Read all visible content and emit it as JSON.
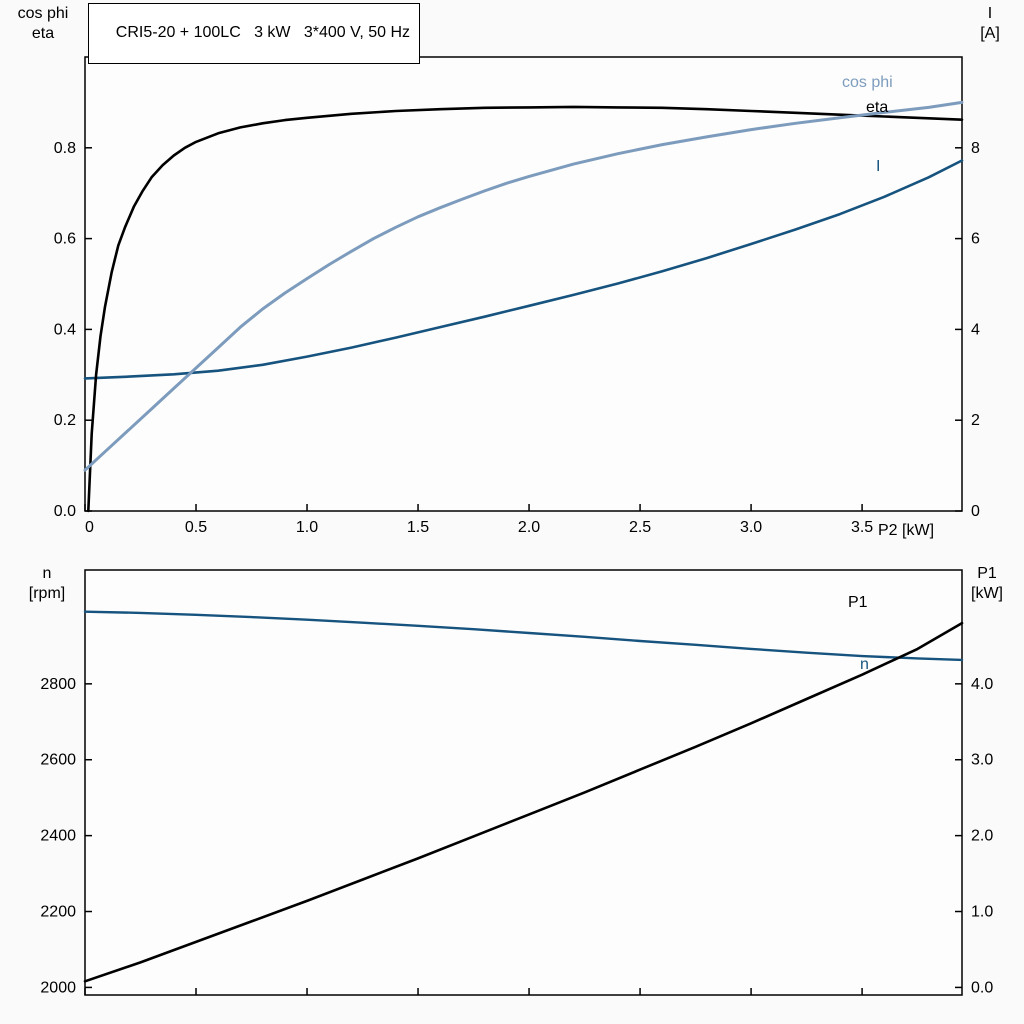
{
  "colors": {
    "curve_black": "#000000",
    "curve_light_blue": "#7d9cbd",
    "curve_dark_blue": "#16537e",
    "frame": "#000000",
    "background": "#fafafa",
    "plot_background": "#fdfdfd",
    "title_border": "#000000"
  },
  "labels": {
    "top_left_line1": "cos phi",
    "top_left_line2": "eta",
    "top_right_line1": "I",
    "top_right_line2": "[A]",
    "x_axis": "P2 [kW]",
    "bottom_left_line1": "n",
    "bottom_left_line2": "[rpm]",
    "bottom_right_line1": "P1",
    "bottom_right_line2": "[kW]",
    "curve_cos_phi": "cos phi",
    "curve_eta": "eta",
    "curve_current": "I",
    "curve_p1": "P1",
    "curve_n": "n"
  },
  "chart_data": [
    {
      "type": "line",
      "title": "CRI5-20 + 100LC   3 kW   3*400 V, 50 Hz",
      "grid": false,
      "x_axis": {
        "label": "P2 [kW]",
        "range": [
          0,
          3.95
        ],
        "ticks": [
          0,
          0.5,
          1.0,
          1.5,
          2.0,
          2.5,
          3.0,
          3.5
        ],
        "tick_labels": [
          "0",
          "0.5",
          "1.0",
          "1.5",
          "2.0",
          "2.5",
          "3.0",
          "3.5"
        ]
      },
      "y_left": {
        "label": "cos phi / eta",
        "range": [
          0,
          1.0
        ],
        "ticks": [
          0.0,
          0.2,
          0.4,
          0.6,
          0.8
        ],
        "tick_labels": [
          "0.0",
          "0.2",
          "0.4",
          "0.6",
          "0.8"
        ]
      },
      "y_right": {
        "label": "I [A]",
        "range": [
          0,
          10
        ],
        "ticks": [
          0,
          2,
          4,
          6,
          8
        ],
        "tick_labels": [
          "0",
          "2",
          "4",
          "6",
          "8"
        ]
      },
      "series": [
        {
          "name": "I",
          "axis": "right",
          "color": "#16537e",
          "width": 2.6,
          "points": [
            [
              0,
              2.92
            ],
            [
              0.2,
              2.96
            ],
            [
              0.4,
              3.01
            ],
            [
              0.6,
              3.09
            ],
            [
              0.8,
              3.22
            ],
            [
              1.0,
              3.4
            ],
            [
              1.2,
              3.6
            ],
            [
              1.4,
              3.82
            ],
            [
              1.6,
              4.05
            ],
            [
              1.8,
              4.28
            ],
            [
              2.0,
              4.52
            ],
            [
              2.2,
              4.76
            ],
            [
              2.4,
              5.01
            ],
            [
              2.6,
              5.28
            ],
            [
              2.8,
              5.57
            ],
            [
              3.0,
              5.88
            ],
            [
              3.2,
              6.2
            ],
            [
              3.4,
              6.54
            ],
            [
              3.6,
              6.92
            ],
            [
              3.8,
              7.35
            ],
            [
              3.95,
              7.72
            ]
          ]
        },
        {
          "name": "eta",
          "axis": "left",
          "color": "#000000",
          "width": 2.6,
          "points": [
            [
              0.015,
              0
            ],
            [
              0.03,
              0.17
            ],
            [
              0.05,
              0.3
            ],
            [
              0.07,
              0.385
            ],
            [
              0.09,
              0.45
            ],
            [
              0.12,
              0.525
            ],
            [
              0.15,
              0.585
            ],
            [
              0.18,
              0.625
            ],
            [
              0.22,
              0.67
            ],
            [
              0.26,
              0.705
            ],
            [
              0.3,
              0.735
            ],
            [
              0.35,
              0.762
            ],
            [
              0.4,
              0.783
            ],
            [
              0.45,
              0.8
            ],
            [
              0.5,
              0.813
            ],
            [
              0.6,
              0.832
            ],
            [
              0.7,
              0.845
            ],
            [
              0.8,
              0.854
            ],
            [
              0.9,
              0.861
            ],
            [
              1.0,
              0.866
            ],
            [
              1.2,
              0.875
            ],
            [
              1.4,
              0.881
            ],
            [
              1.6,
              0.885
            ],
            [
              1.8,
              0.888
            ],
            [
              2.0,
              0.889
            ],
            [
              2.2,
              0.89
            ],
            [
              2.4,
              0.889
            ],
            [
              2.6,
              0.888
            ],
            [
              2.8,
              0.885
            ],
            [
              3.0,
              0.881
            ],
            [
              3.2,
              0.877
            ],
            [
              3.4,
              0.873
            ],
            [
              3.6,
              0.869
            ],
            [
              3.8,
              0.865
            ],
            [
              3.95,
              0.862
            ]
          ]
        },
        {
          "name": "cos phi",
          "axis": "left",
          "color": "#7d9cbd",
          "width": 3,
          "points": [
            [
              0,
              0.09
            ],
            [
              0.1,
              0.135
            ],
            [
              0.2,
              0.18
            ],
            [
              0.3,
              0.225
            ],
            [
              0.4,
              0.27
            ],
            [
              0.5,
              0.315
            ],
            [
              0.6,
              0.36
            ],
            [
              0.7,
              0.405
            ],
            [
              0.8,
              0.445
            ],
            [
              0.9,
              0.48
            ],
            [
              1.0,
              0.512
            ],
            [
              1.1,
              0.543
            ],
            [
              1.2,
              0.572
            ],
            [
              1.3,
              0.6
            ],
            [
              1.4,
              0.625
            ],
            [
              1.5,
              0.648
            ],
            [
              1.6,
              0.668
            ],
            [
              1.7,
              0.687
            ],
            [
              1.8,
              0.705
            ],
            [
              1.9,
              0.722
            ],
            [
              2.0,
              0.737
            ],
            [
              2.2,
              0.764
            ],
            [
              2.4,
              0.787
            ],
            [
              2.6,
              0.807
            ],
            [
              2.8,
              0.824
            ],
            [
              3.0,
              0.84
            ],
            [
              3.2,
              0.854
            ],
            [
              3.4,
              0.866
            ],
            [
              3.6,
              0.878
            ],
            [
              3.8,
              0.889
            ],
            [
              3.95,
              0.9
            ]
          ]
        }
      ]
    },
    {
      "type": "line",
      "title": "",
      "grid": false,
      "x_axis": {
        "label": "",
        "range": [
          0,
          3.95
        ],
        "ticks": [
          0,
          0.5,
          1.0,
          1.5,
          2.0,
          2.5,
          3.0,
          3.5
        ],
        "tick_labels": []
      },
      "y_left": {
        "label": "n [rpm]",
        "range": [
          1980,
          3100
        ],
        "ticks": [
          2000,
          2200,
          2400,
          2600,
          2800
        ],
        "tick_labels": [
          "2000",
          "2200",
          "2400",
          "2600",
          "2800"
        ]
      },
      "y_right": {
        "label": "P1 [kW]",
        "range": [
          -0.1,
          5.5
        ],
        "ticks": [
          0.0,
          1.0,
          2.0,
          3.0,
          4.0
        ],
        "tick_labels": [
          "0.0",
          "1.0",
          "2.0",
          "3.0",
          "4.0"
        ]
      },
      "series": [
        {
          "name": "n",
          "axis": "left",
          "color": "#16537e",
          "width": 2.4,
          "points": [
            [
              0,
              2990
            ],
            [
              0.25,
              2987
            ],
            [
              0.5,
              2982
            ],
            [
              0.75,
              2976
            ],
            [
              1.0,
              2969
            ],
            [
              1.25,
              2961
            ],
            [
              1.5,
              2953
            ],
            [
              1.75,
              2944
            ],
            [
              2.0,
              2934
            ],
            [
              2.25,
              2924
            ],
            [
              2.5,
              2913
            ],
            [
              2.75,
              2903
            ],
            [
              3.0,
              2892
            ],
            [
              3.25,
              2882
            ],
            [
              3.5,
              2873
            ],
            [
              3.75,
              2867
            ],
            [
              3.95,
              2863
            ]
          ]
        },
        {
          "name": "P1",
          "axis": "right",
          "color": "#000000",
          "width": 2.6,
          "points": [
            [
              0,
              0.08
            ],
            [
              0.25,
              0.33
            ],
            [
              0.5,
              0.6
            ],
            [
              0.75,
              0.87
            ],
            [
              1.0,
              1.14
            ],
            [
              1.25,
              1.42
            ],
            [
              1.5,
              1.7
            ],
            [
              1.75,
              1.99
            ],
            [
              2.0,
              2.28
            ],
            [
              2.25,
              2.57
            ],
            [
              2.5,
              2.87
            ],
            [
              2.75,
              3.17
            ],
            [
              3.0,
              3.48
            ],
            [
              3.25,
              3.8
            ],
            [
              3.5,
              4.12
            ],
            [
              3.75,
              4.46
            ],
            [
              3.95,
              4.8
            ]
          ]
        }
      ]
    }
  ]
}
